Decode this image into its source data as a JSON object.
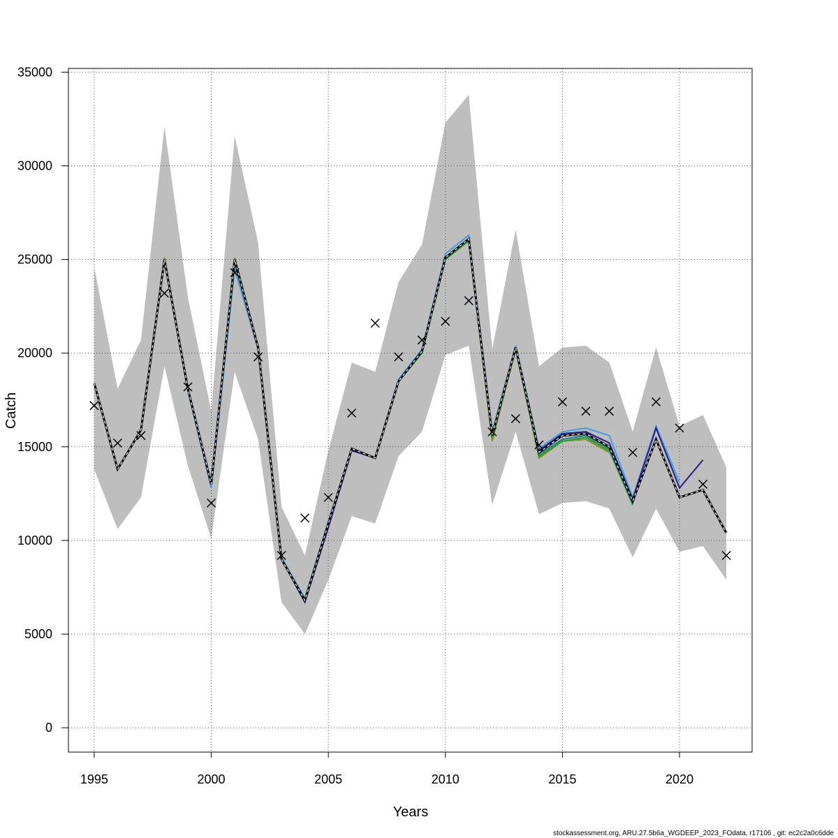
{
  "chart_data": {
    "type": "line",
    "xlabel": "Years",
    "ylabel": "Catch",
    "xlim": [
      1993.9,
      2023.1
    ],
    "ylim": [
      -1300,
      35200
    ],
    "x_ticks": [
      1995,
      2000,
      2005,
      2010,
      2015,
      2020
    ],
    "y_ticks": [
      0,
      5000,
      10000,
      15000,
      20000,
      25000,
      30000,
      35000
    ],
    "grid": true,
    "footer": "stockassessment.org, ARU.27.5b6a_WGDEEP_2023_FOdata, r17106 , git: ec2c2a0c6dde",
    "confidence_band": {
      "x": [
        1995,
        1996,
        1997,
        1998,
        1999,
        2000,
        2001,
        2002,
        2003,
        2004,
        2005,
        2006,
        2007,
        2008,
        2009,
        2010,
        2011,
        2012,
        2013,
        2014,
        2015,
        2016,
        2017,
        2018,
        2019,
        2020,
        2021,
        2022
      ],
      "lower": [
        13800,
        10600,
        12300,
        19300,
        14000,
        10100,
        19000,
        15400,
        6700,
        5000,
        7900,
        11300,
        10900,
        14500,
        15800,
        19900,
        20400,
        11900,
        15800,
        11400,
        12000,
        12100,
        11700,
        9100,
        11700,
        9400,
        9700,
        7900
      ],
      "upper": [
        24600,
        18100,
        20700,
        32100,
        23000,
        16900,
        31600,
        25900,
        11800,
        9200,
        14800,
        19500,
        19000,
        23800,
        25800,
        32300,
        33800,
        20200,
        26600,
        19300,
        20300,
        20400,
        19500,
        15800,
        20300,
        16100,
        16700,
        13900
      ]
    },
    "observed": {
      "marker": "x",
      "x": [
        1995,
        1996,
        1997,
        1998,
        1999,
        2000,
        2001,
        2002,
        2003,
        2004,
        2005,
        2006,
        2007,
        2008,
        2009,
        2010,
        2011,
        2012,
        2013,
        2014,
        2015,
        2016,
        2017,
        2018,
        2019,
        2020,
        2021,
        2022
      ],
      "y": [
        17200,
        15200,
        15600,
        23200,
        18200,
        12000,
        24300,
        19800,
        9200,
        11200,
        12300,
        16800,
        21600,
        19800,
        20700,
        21700,
        22800,
        15800,
        16500,
        15100,
        17400,
        16900,
        16900,
        14700,
        17400,
        16000,
        13000,
        9200
      ]
    },
    "series": [
      {
        "style": "dashed",
        "color": "#000000",
        "x": [
          1995,
          1996,
          1997,
          1998,
          1999,
          2000,
          2001,
          2002,
          2003,
          2004,
          2005,
          2006,
          2007,
          2008,
          2009,
          2010,
          2011,
          2012,
          2013,
          2014,
          2015,
          2016,
          2017,
          2018,
          2019,
          2020,
          2021,
          2022
        ],
        "y": [
          18400,
          13800,
          15900,
          25000,
          18100,
          13000,
          25000,
          20300,
          9000,
          6800,
          10900,
          14900,
          14400,
          18500,
          20100,
          25100,
          26100,
          15600,
          20300,
          14700,
          15600,
          15700,
          15000,
          12100,
          15400,
          12300,
          12700,
          10400
        ]
      },
      {
        "color": "#2a1a8a",
        "x": [
          1995,
          1996,
          1997,
          1998,
          1999,
          2000,
          2001,
          2002,
          2003,
          2004,
          2005,
          2006,
          2007,
          2008,
          2009,
          2010,
          2011,
          2012,
          2013,
          2014,
          2015,
          2016,
          2017,
          2018,
          2019,
          2020,
          2021
        ],
        "y": [
          18400,
          13800,
          15900,
          25000,
          18100,
          13000,
          25000,
          20300,
          9000,
          6700,
          10700,
          14800,
          14400,
          18500,
          20100,
          25100,
          26100,
          15600,
          20300,
          14800,
          15700,
          15800,
          15200,
          12200,
          16000,
          12800,
          14300
        ]
      },
      {
        "color": "#3aa0e8",
        "x": [
          1995,
          1996,
          1997,
          1998,
          1999,
          2000,
          2001,
          2002,
          2003,
          2004,
          2005,
          2006,
          2007,
          2008,
          2009,
          2010,
          2011,
          2012,
          2013,
          2014,
          2015,
          2016,
          2017,
          2018,
          2019,
          2020
        ],
        "y": [
          18400,
          13800,
          15900,
          25000,
          18000,
          12800,
          24500,
          20200,
          9100,
          6900,
          11000,
          14900,
          14400,
          18600,
          20200,
          25300,
          26300,
          15800,
          20400,
          14900,
          15800,
          16000,
          15600,
          12300,
          16100,
          13100
        ]
      },
      {
        "color": "#1a8080",
        "x": [
          1995,
          1996,
          1997,
          1998,
          1999,
          2000,
          2001,
          2002,
          2003,
          2004,
          2005,
          2006,
          2007,
          2008,
          2009,
          2010,
          2011,
          2012,
          2013,
          2014,
          2015,
          2016,
          2017,
          2018,
          2019
        ],
        "y": [
          18400,
          13800,
          15900,
          25000,
          18100,
          12900,
          24800,
          20300,
          9000,
          6800,
          10900,
          14900,
          14400,
          18500,
          20100,
          25100,
          26100,
          15600,
          20300,
          14600,
          15400,
          15600,
          14900,
          12000,
          15500
        ]
      },
      {
        "color": "#22a022",
        "x": [
          1995,
          1996,
          1997,
          1998,
          1999,
          2000,
          2001,
          2002,
          2003,
          2004,
          2005,
          2006,
          2007,
          2008,
          2009,
          2010,
          2011,
          2012,
          2013,
          2014,
          2015,
          2016,
          2017,
          2018
        ],
        "y": [
          18400,
          13800,
          15900,
          25000,
          18100,
          13000,
          25000,
          20300,
          9000,
          6900,
          11000,
          14900,
          14400,
          18500,
          20000,
          25000,
          26000,
          15500,
          20200,
          14500,
          15300,
          15500,
          14800,
          11900
        ]
      },
      {
        "color": "#8a8a20",
        "x": [
          1995,
          1996,
          1997,
          1998,
          1999,
          2000,
          2001,
          2002,
          2003,
          2004,
          2005,
          2006,
          2007,
          2008,
          2009,
          2010,
          2011,
          2012,
          2013,
          2014,
          2015,
          2016,
          2017
        ],
        "y": [
          18400,
          13800,
          15900,
          25100,
          18100,
          13000,
          25100,
          20400,
          9100,
          6900,
          11000,
          14900,
          14400,
          18500,
          20000,
          25100,
          26100,
          15300,
          20200,
          14400,
          15300,
          15400,
          14700
        ]
      }
    ]
  }
}
